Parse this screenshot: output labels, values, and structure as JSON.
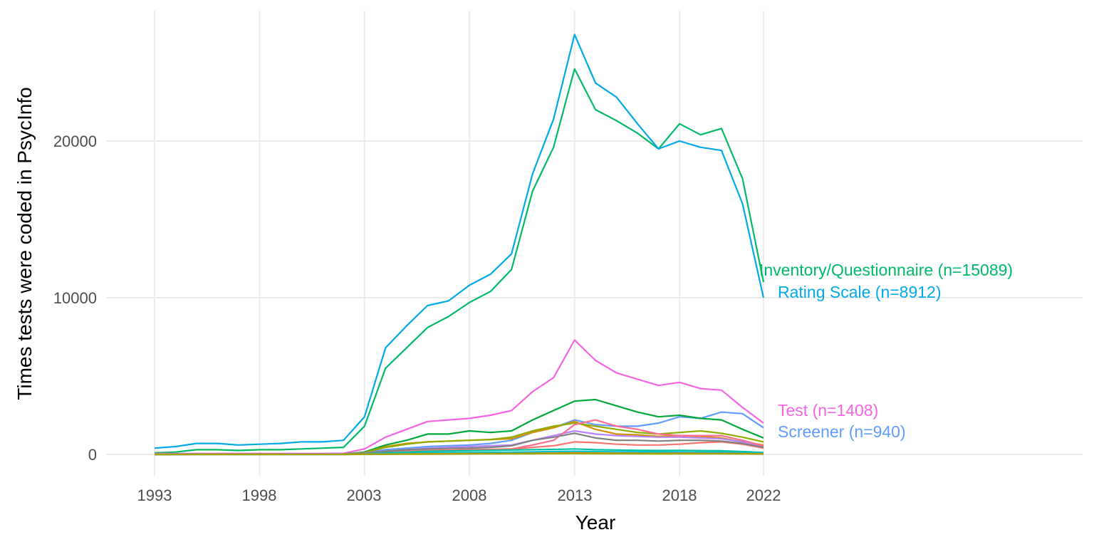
{
  "chart_data": {
    "type": "line",
    "xlabel": "Year",
    "ylabel": "Times tests were coded in PsycInfo",
    "xlim": [
      1993,
      2022
    ],
    "ylim": [
      0,
      27000
    ],
    "x_ticks": [
      "1993",
      "1998",
      "2003",
      "2008",
      "2013",
      "2018",
      "2022"
    ],
    "y_ticks": [
      "0",
      "10000",
      "20000"
    ],
    "grid": true,
    "legend": "none (series labelled directly at line ends)",
    "x": [
      1993,
      1994,
      1995,
      1996,
      1997,
      1998,
      1999,
      2000,
      2001,
      2002,
      2003,
      2004,
      2005,
      2006,
      2007,
      2008,
      2009,
      2010,
      2011,
      2012,
      2013,
      2014,
      2015,
      2016,
      2017,
      2018,
      2019,
      2020,
      2021,
      2022
    ],
    "series": [
      {
        "name": "Inventory/Questionnaire (n=15089)",
        "color": "#00BA68",
        "values": [
          100,
          150,
          300,
          300,
          250,
          300,
          300,
          350,
          400,
          450,
          1800,
          5500,
          6800,
          8100,
          8800,
          9700,
          10400,
          11800,
          16800,
          19600,
          24600,
          22000,
          21300,
          20500,
          19500,
          21100,
          20400,
          20800,
          17600,
          11000
        ]
      },
      {
        "name": "Rating Scale (n=8912)",
        "color": "#00A9E9",
        "values": [
          400,
          500,
          700,
          700,
          600,
          650,
          700,
          800,
          800,
          900,
          2400,
          6800,
          8200,
          9500,
          9800,
          10800,
          11500,
          12800,
          17900,
          21400,
          26800,
          23700,
          22800,
          21100,
          19500,
          20000,
          19600,
          19400,
          16000,
          10000
        ]
      },
      {
        "name": "Test (n=1408)",
        "color": "#F564E3",
        "values": [
          50,
          50,
          60,
          60,
          60,
          60,
          60,
          60,
          60,
          70,
          350,
          1100,
          1600,
          2100,
          2200,
          2300,
          2500,
          2800,
          4000,
          4900,
          7300,
          6000,
          5200,
          4800,
          4400,
          4600,
          4200,
          4100,
          3000,
          2000
        ]
      },
      {
        "name": "Screener (n=940)",
        "color": "#619CFF",
        "values": [
          0,
          0,
          10,
          10,
          10,
          10,
          10,
          10,
          10,
          20,
          100,
          300,
          400,
          500,
          550,
          600,
          700,
          900,
          1400,
          1700,
          2200,
          1900,
          1800,
          1800,
          2000,
          2400,
          2300,
          2700,
          2600,
          1700
        ]
      },
      {
        "name": "",
        "color": "#00A838",
        "values": [
          0,
          0,
          10,
          10,
          10,
          10,
          10,
          10,
          20,
          20,
          150,
          600,
          900,
          1300,
          1300,
          1500,
          1400,
          1500,
          2200,
          2800,
          3400,
          3500,
          3100,
          2700,
          2400,
          2500,
          2300,
          2200,
          1600,
          1050
        ]
      },
      {
        "name": "",
        "color": "#D39200",
        "values": [
          0,
          0,
          10,
          10,
          10,
          10,
          10,
          10,
          10,
          20,
          100,
          500,
          700,
          800,
          850,
          900,
          950,
          1000,
          1400,
          1700,
          2100,
          1600,
          1300,
          1250,
          1150,
          1200,
          1150,
          1050,
          800,
          600
        ]
      },
      {
        "name": "",
        "color": "#93AA00",
        "values": [
          0,
          0,
          10,
          10,
          10,
          10,
          10,
          10,
          10,
          20,
          100,
          450,
          650,
          800,
          850,
          900,
          950,
          1100,
          1500,
          1800,
          2000,
          1800,
          1600,
          1400,
          1300,
          1400,
          1500,
          1350,
          1100,
          800
        ]
      },
      {
        "name": "",
        "color": "#B983FF",
        "values": [
          0,
          0,
          5,
          5,
          5,
          5,
          5,
          5,
          5,
          10,
          80,
          200,
          300,
          400,
          450,
          500,
          550,
          600,
          900,
          1200,
          1500,
          1300,
          1200,
          1150,
          1100,
          1100,
          1050,
          1000,
          800,
          550
        ]
      },
      {
        "name": "",
        "color": "#FF6C91",
        "values": [
          0,
          0,
          5,
          5,
          5,
          5,
          5,
          5,
          5,
          10,
          50,
          150,
          200,
          250,
          260,
          270,
          300,
          350,
          600,
          900,
          1900,
          2200,
          1800,
          1600,
          1300,
          1200,
          1200,
          1200,
          900,
          550
        ]
      },
      {
        "name": "",
        "color": "#F8766D",
        "values": [
          0,
          0,
          5,
          5,
          5,
          5,
          5,
          5,
          5,
          10,
          50,
          150,
          200,
          250,
          270,
          300,
          320,
          350,
          450,
          550,
          800,
          750,
          650,
          600,
          600,
          650,
          750,
          800,
          650,
          400
        ]
      },
      {
        "name": "",
        "color": "#808080",
        "values": [
          0,
          0,
          5,
          5,
          5,
          5,
          5,
          5,
          5,
          10,
          60,
          200,
          300,
          350,
          380,
          400,
          450,
          550,
          900,
          1100,
          1350,
          1050,
          900,
          900,
          850,
          900,
          900,
          850,
          700,
          450
        ]
      },
      {
        "name": "",
        "color": "#00C1A3",
        "values": [
          0,
          0,
          0,
          0,
          0,
          0,
          0,
          0,
          0,
          0,
          20,
          100,
          150,
          200,
          220,
          240,
          260,
          280,
          300,
          320,
          350,
          300,
          280,
          260,
          250,
          260,
          240,
          230,
          180,
          120
        ]
      },
      {
        "name": "",
        "color": "#00BECD",
        "values": [
          0,
          0,
          0,
          0,
          0,
          0,
          0,
          0,
          0,
          0,
          10,
          50,
          80,
          100,
          110,
          120,
          130,
          140,
          160,
          180,
          200,
          180,
          170,
          160,
          150,
          150,
          140,
          130,
          110,
          80
        ]
      },
      {
        "name": "",
        "color": "#E58700",
        "values": [
          0,
          0,
          0,
          0,
          0,
          0,
          0,
          0,
          0,
          0,
          5,
          20,
          30,
          40,
          45,
          50,
          55,
          60,
          70,
          80,
          90,
          80,
          75,
          70,
          65,
          70,
          65,
          60,
          50,
          40
        ]
      },
      {
        "name": "",
        "color": "#A3A500",
        "values": [
          0,
          0,
          0,
          0,
          0,
          0,
          0,
          0,
          0,
          0,
          5,
          10,
          15,
          20,
          25,
          30,
          35,
          40,
          45,
          50,
          55,
          50,
          45,
          40,
          40,
          40,
          38,
          35,
          30,
          25
        ]
      }
    ]
  }
}
